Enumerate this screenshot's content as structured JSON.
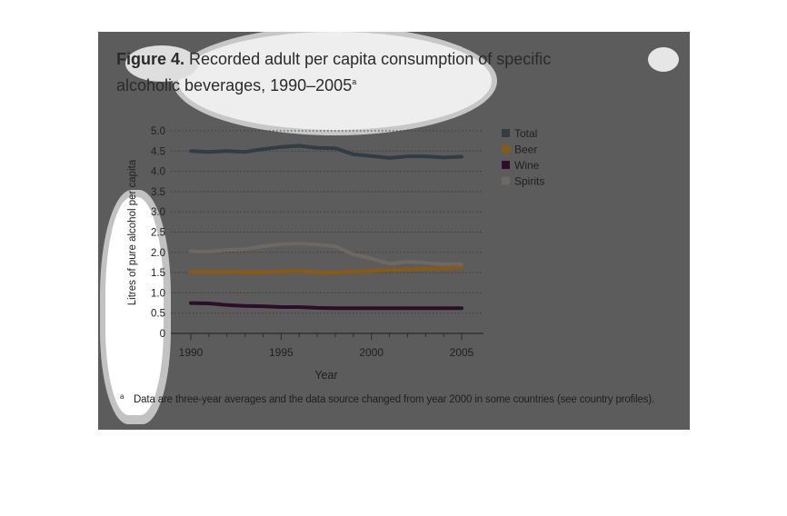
{
  "figure": {
    "label": "Figure 4.",
    "title": "Recorded adult per capita consumption of specific alcoholic beverages, 1990–2005",
    "superscript": "a"
  },
  "footnote": {
    "marker": "a",
    "text": "Data are three-year averages and the data source changed from year 2000 in some countries (see country profiles)."
  },
  "colors": {
    "panel": "#5c5c5c",
    "total": "#2f3d44",
    "beer": "#8a5a12",
    "wine": "#2d0d29",
    "spirits": "#6d6864",
    "grid": "#3a3a3a",
    "text": "#202020"
  },
  "chart_data": {
    "type": "line",
    "xlabel": "Year",
    "ylabel": "Litres of pure alcohol per capita",
    "xlim": [
      1990,
      2006
    ],
    "ylim": [
      0,
      5.0
    ],
    "x_ticks": [
      1990,
      1995,
      2000,
      2005
    ],
    "y_ticks": [
      "0",
      "0.5",
      "1.0",
      "1.5",
      "2.0",
      "2.5",
      "3.0",
      "3.5",
      "4.0",
      "4.5",
      "5.0"
    ],
    "grid": true,
    "legend_position": "right",
    "x": [
      1990,
      1991,
      1992,
      1993,
      1994,
      1995,
      1996,
      1997,
      1998,
      1999,
      2000,
      2001,
      2002,
      2003,
      2004,
      2005
    ],
    "series": [
      {
        "name": "Total",
        "color": "#2f3d44",
        "values": [
          4.5,
          4.48,
          4.5,
          4.48,
          4.55,
          4.6,
          4.63,
          4.58,
          4.57,
          4.42,
          4.38,
          4.33,
          4.37,
          4.37,
          4.34,
          4.36
        ]
      },
      {
        "name": "Beer",
        "color": "#8a5a12",
        "values": [
          1.52,
          1.52,
          1.52,
          1.51,
          1.51,
          1.53,
          1.54,
          1.51,
          1.5,
          1.53,
          1.54,
          1.57,
          1.58,
          1.6,
          1.61,
          1.63
        ]
      },
      {
        "name": "Wine",
        "color": "#2d0d29",
        "values": [
          0.75,
          0.74,
          0.7,
          0.68,
          0.67,
          0.65,
          0.65,
          0.63,
          0.62,
          0.62,
          0.62,
          0.62,
          0.62,
          0.62,
          0.62,
          0.62
        ]
      },
      {
        "name": "Spirits",
        "color": "#6d6864",
        "values": [
          2.03,
          2.02,
          2.06,
          2.08,
          2.15,
          2.2,
          2.22,
          2.19,
          2.15,
          1.95,
          1.85,
          1.72,
          1.77,
          1.74,
          1.71,
          1.71
        ]
      }
    ]
  }
}
